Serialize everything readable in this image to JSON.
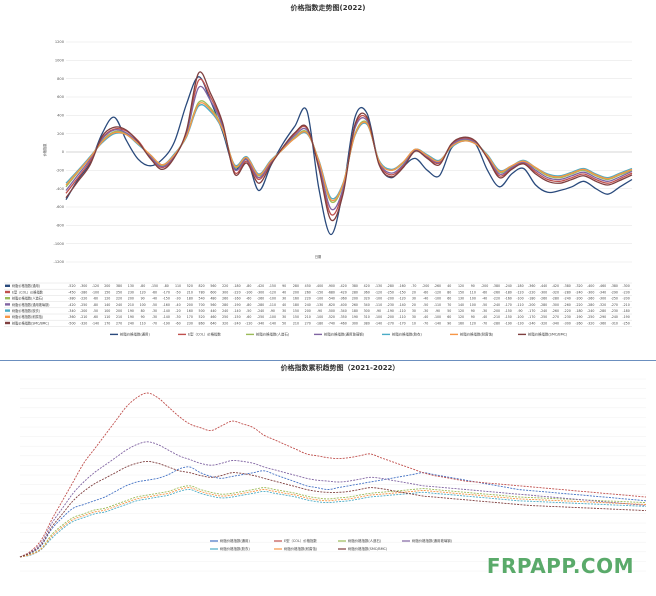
{
  "chart_data": [
    {
      "type": "line",
      "title": "价格指数走势图(2022)",
      "xlabel": "日期",
      "ylabel": "价格指数",
      "ylim": [
        -1200,
        1200
      ],
      "yticks": [
        -1200,
        -1000,
        -800,
        -600,
        -400,
        -200,
        0,
        200,
        400,
        600,
        800,
        1000,
        1200
      ],
      "grid": true,
      "legend": "bottom",
      "x_count": 48,
      "series": [
        {
          "name": "树脂价格指数(通用)",
          "color": "#2a4a7c",
          "values": [
            -520,
            -300,
            -120,
            200,
            380,
            130,
            -80,
            -150,
            -80,
            110,
            520,
            820,
            560,
            220,
            -180,
            -80,
            -420,
            -150,
            90,
            280,
            450,
            -400,
            -900,
            -420,
            380,
            420,
            -130,
            -280,
            -160,
            -70,
            -200,
            -260,
            40,
            120,
            90,
            -200,
            -380,
            -240,
            -180,
            -360,
            -440,
            -420,
            -380,
            -320,
            -400,
            -460,
            -380,
            -300
          ]
        },
        {
          "name": "E型（COL）价格指数",
          "color": "#c0504d",
          "values": [
            -450,
            -280,
            -100,
            150,
            250,
            230,
            120,
            -60,
            -170,
            -50,
            210,
            780,
            600,
            300,
            -220,
            -100,
            -300,
            -120,
            40,
            200,
            260,
            -150,
            -680,
            -420,
            280,
            360,
            -120,
            -250,
            -150,
            20,
            -60,
            -120,
            80,
            150,
            110,
            -60,
            -260,
            -180,
            -120,
            -220,
            -300,
            -320,
            -280,
            -240,
            -300,
            -340,
            -290,
            -230
          ]
        },
        {
          "name": "树脂价格指数(人造石)",
          "color": "#9bbb59",
          "values": [
            -380,
            -220,
            -60,
            120,
            220,
            200,
            90,
            -40,
            -150,
            -30,
            180,
            540,
            480,
            260,
            -160,
            -60,
            -260,
            -100,
            30,
            160,
            220,
            -100,
            -540,
            -360,
            200,
            320,
            -100,
            -200,
            -120,
            30,
            -40,
            -100,
            60,
            130,
            100,
            -40,
            -220,
            -160,
            -100,
            -180,
            -260,
            -280,
            -240,
            -200,
            -260,
            -300,
            -250,
            -200
          ]
        },
        {
          "name": "树脂价格指数(通用玻璃钢)",
          "color": "#8064a2",
          "values": [
            -420,
            -250,
            -80,
            140,
            240,
            210,
            100,
            -50,
            -160,
            -40,
            200,
            700,
            560,
            280,
            -190,
            -80,
            -280,
            -110,
            40,
            180,
            240,
            -130,
            -620,
            -400,
            260,
            340,
            -110,
            -230,
            -140,
            20,
            -50,
            -110,
            70,
            140,
            100,
            -50,
            -240,
            -170,
            -110,
            -200,
            -280,
            -300,
            -260,
            -220,
            -280,
            -320,
            -270,
            -210
          ]
        },
        {
          "name": "树脂价格指数(胶衣)",
          "color": "#4bacc6",
          "values": [
            -340,
            -200,
            -50,
            100,
            200,
            190,
            80,
            -30,
            -140,
            -20,
            160,
            500,
            440,
            240,
            -140,
            -50,
            -240,
            -90,
            30,
            150,
            200,
            -90,
            -500,
            -340,
            180,
            300,
            -90,
            -190,
            -110,
            30,
            -30,
            -90,
            50,
            120,
            90,
            -30,
            -200,
            -150,
            -90,
            -170,
            -240,
            -260,
            -220,
            -180,
            -240,
            -280,
            -230,
            -180
          ]
        },
        {
          "name": "树脂价格指数(耐腐蚀)",
          "color": "#f79646",
          "values": [
            -360,
            -210,
            -60,
            110,
            210,
            190,
            90,
            -30,
            -140,
            -30,
            170,
            520,
            460,
            250,
            -150,
            -60,
            -250,
            -100,
            30,
            150,
            210,
            -100,
            -520,
            -350,
            190,
            310,
            -100,
            -200,
            -110,
            30,
            -40,
            -100,
            60,
            120,
            90,
            -40,
            -210,
            -150,
            -100,
            -170,
            -250,
            -270,
            -230,
            -190,
            -250,
            -290,
            -240,
            -190
          ]
        },
        {
          "name": "树脂价格指数(SMC/BMC)",
          "color": "#7f3f3f",
          "values": [
            -500,
            -320,
            -140,
            170,
            270,
            240,
            110,
            -70,
            -190,
            -60,
            230,
            860,
            640,
            320,
            -240,
            -120,
            -340,
            -140,
            50,
            210,
            270,
            -180,
            -740,
            -460,
            300,
            380,
            -140,
            -270,
            -170,
            10,
            -70,
            -140,
            90,
            160,
            120,
            -70,
            -280,
            -190,
            -130,
            -240,
            -320,
            -340,
            -300,
            -260,
            -320,
            -360,
            -310,
            -250
          ]
        }
      ]
    },
    {
      "type": "line",
      "title": "价格指数累积趋势图（2021-2022）",
      "grid": true,
      "legend": "bottom",
      "x_count": 60,
      "series": [
        {
          "name": "树脂价格指数(通用)",
          "color": "#4472c4",
          "values": [
            1000,
            1040,
            1120,
            1300,
            1420,
            1520,
            1560,
            1600,
            1640,
            1700,
            1760,
            1800,
            1820,
            1840,
            1880,
            1940,
            1960,
            1900,
            1860,
            1840,
            1860,
            1880,
            1900,
            1920,
            1880,
            1840,
            1800,
            1760,
            1740,
            1720,
            1740,
            1760,
            1780,
            1800,
            1820,
            1840,
            1860,
            1880,
            1900,
            1880,
            1860,
            1840,
            1820,
            1800,
            1780,
            1760,
            1740,
            1720,
            1710,
            1700,
            1690,
            1680,
            1670,
            1660,
            1650,
            1640,
            1630,
            1620,
            1610,
            1600
          ]
        },
        {
          "name": "E型（COL）价格指数",
          "color": "#c0504d",
          "values": [
            1000,
            1060,
            1180,
            1400,
            1600,
            1800,
            2000,
            2150,
            2300,
            2450,
            2600,
            2700,
            2750,
            2700,
            2600,
            2500,
            2420,
            2380,
            2350,
            2400,
            2450,
            2420,
            2380,
            2300,
            2250,
            2200,
            2150,
            2100,
            2080,
            2060,
            2050,
            2060,
            2080,
            2100,
            2060,
            2020,
            1980,
            1940,
            1900,
            1870,
            1850,
            1830,
            1810,
            1800,
            1790,
            1780,
            1770,
            1760,
            1750,
            1740,
            1730,
            1720,
            1710,
            1700,
            1690,
            1680,
            1670,
            1660,
            1650,
            1640
          ]
        },
        {
          "name": "树脂价格指数(人造石)",
          "color": "#9bbb59",
          "values": [
            1000,
            1030,
            1090,
            1240,
            1340,
            1420,
            1460,
            1500,
            1520,
            1560,
            1600,
            1640,
            1660,
            1680,
            1700,
            1740,
            1760,
            1720,
            1690,
            1670,
            1680,
            1700,
            1720,
            1740,
            1720,
            1700,
            1680,
            1650,
            1630,
            1620,
            1630,
            1640,
            1660,
            1680,
            1690,
            1700,
            1710,
            1720,
            1730,
            1720,
            1710,
            1700,
            1690,
            1680,
            1670,
            1660,
            1650,
            1640,
            1635,
            1630,
            1625,
            1620,
            1615,
            1610,
            1605,
            1600,
            1595,
            1590,
            1585,
            1580
          ]
        },
        {
          "name": "树脂价格指数(通用玻璃钢)",
          "color": "#8064a2",
          "values": [
            1000,
            1050,
            1150,
            1360,
            1520,
            1680,
            1800,
            1900,
            1980,
            2060,
            2140,
            2200,
            2230,
            2200,
            2140,
            2080,
            2040,
            2000,
            1980,
            2000,
            2030,
            2020,
            2000,
            1960,
            1930,
            1900,
            1870,
            1840,
            1820,
            1810,
            1800,
            1810,
            1830,
            1850,
            1840,
            1820,
            1800,
            1780,
            1760,
            1750,
            1740,
            1730,
            1720,
            1710,
            1700,
            1690,
            1680,
            1670,
            1660,
            1650,
            1640,
            1630,
            1620,
            1610,
            1600,
            1590,
            1580,
            1570,
            1560,
            1550
          ]
        },
        {
          "name": "树脂价格指数(胶衣)",
          "color": "#4bacc6",
          "values": [
            1000,
            1020,
            1080,
            1200,
            1300,
            1380,
            1420,
            1460,
            1480,
            1520,
            1560,
            1600,
            1620,
            1640,
            1660,
            1700,
            1720,
            1680,
            1650,
            1630,
            1640,
            1660,
            1680,
            1700,
            1680,
            1660,
            1640,
            1610,
            1590,
            1580,
            1590,
            1600,
            1620,
            1640,
            1650,
            1660,
            1670,
            1680,
            1690,
            1680,
            1670,
            1660,
            1650,
            1640,
            1630,
            1620,
            1610,
            1600,
            1595,
            1590,
            1585,
            1580,
            1575,
            1570,
            1565,
            1560,
            1555,
            1550,
            1545,
            1540
          ]
        },
        {
          "name": "树脂价格指数(耐腐蚀)",
          "color": "#f79646",
          "values": [
            1000,
            1025,
            1085,
            1220,
            1320,
            1400,
            1440,
            1480,
            1500,
            1540,
            1580,
            1620,
            1640,
            1660,
            1680,
            1720,
            1740,
            1700,
            1670,
            1650,
            1660,
            1680,
            1700,
            1720,
            1700,
            1680,
            1660,
            1630,
            1610,
            1600,
            1610,
            1620,
            1640,
            1660,
            1670,
            1680,
            1690,
            1700,
            1710,
            1700,
            1690,
            1680,
            1670,
            1660,
            1650,
            1640,
            1630,
            1620,
            1615,
            1610,
            1605,
            1600,
            1595,
            1590,
            1585,
            1580,
            1575,
            1570,
            1565,
            1560
          ]
        },
        {
          "name": "树脂价格指数(SMC/BMC)",
          "color": "#7f3f3f",
          "values": [
            1000,
            1045,
            1130,
            1320,
            1460,
            1600,
            1700,
            1780,
            1840,
            1900,
            1960,
            2000,
            2020,
            2000,
            1960,
            1920,
            1900,
            1870,
            1850,
            1870,
            1900,
            1890,
            1870,
            1840,
            1810,
            1780,
            1750,
            1720,
            1700,
            1690,
            1690,
            1700,
            1720,
            1740,
            1730,
            1710,
            1690,
            1670,
            1650,
            1640,
            1630,
            1620,
            1610,
            1600,
            1590,
            1580,
            1570,
            1560,
            1550,
            1545,
            1540,
            1535,
            1530,
            1525,
            1520,
            1515,
            1510,
            1505,
            1500,
            1495
          ]
        }
      ]
    }
  ],
  "watermark": "FRPAPP.COM"
}
